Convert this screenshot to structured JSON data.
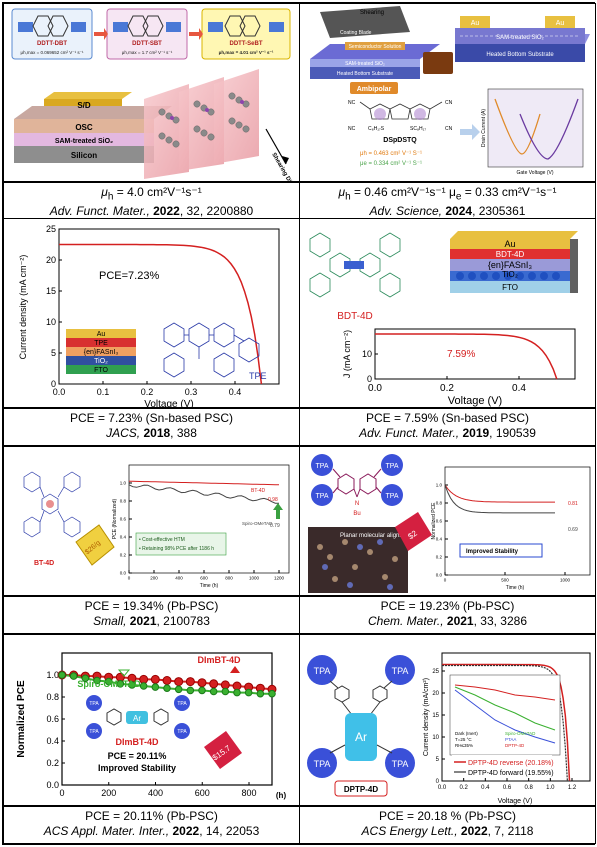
{
  "captions": [
    {
      "line1_pre": "μ",
      "line1_sub": "h",
      "line1_post": " = 4.0 cm²V⁻¹s⁻¹",
      "journal": "Adv. Funct. Mater.,",
      "year": "2022",
      "vol": ", 32, 2200880"
    },
    {
      "line1_pre": "μ",
      "line1_sub": "h",
      "line1_post": " = 0.46 cm²V⁻¹s⁻¹ μ",
      "line1_sub2": "e",
      "line1_post2": " = 0.33 cm²V⁻¹s⁻¹",
      "journal": "Adv. Science,",
      "year": "2024",
      "vol": ", 2305361"
    },
    {
      "line1": "PCE = 7.23% (Sn-based PSC)",
      "journal": "JACS,",
      "year": "2018",
      "vol": ", 388"
    },
    {
      "line1": "PCE = 7.59% (Sn-based PSC)",
      "journal": "Adv. Funct. Mater.,",
      "year": "2019",
      "vol": ", 190539"
    },
    {
      "line1": "PCE = 19.34% (Pb-PSC)",
      "journal": "Small,",
      "year": "2021",
      "vol": ", 2100783"
    },
    {
      "line1": "PCE = 19.23% (Pb-PSC)",
      "journal": "Chem. Mater.,",
      "year": "2021",
      "vol": ", 33, 3286"
    },
    {
      "line1": "PCE = 20.11% (Pb-PSC)",
      "journal": "ACS Appl. Mater. Inter.,",
      "year": "2022",
      "vol": ", 14, 22053"
    },
    {
      "line1": "PCE = 20.18 % (Pb-PSC)",
      "journal": "ACS Energy Lett.,",
      "year": "2022",
      "vol": ", 7, 2118"
    }
  ],
  "p1": {
    "mol1": "DDTT-DBT",
    "mol2": "DDTT-SBT",
    "mol3": "DDTT-SeBT",
    "mob1": "μh,max = 0.069652 cm² V⁻¹ s⁻¹",
    "mob2": "μh,max = 1.7 cm² V⁻¹ s⁻¹",
    "mob3": "μh,max = 4.01 cm² V⁻¹ s⁻¹",
    "layers": [
      "S/D",
      "OSC",
      "SAM-treated SiO₂",
      "Silicon"
    ],
    "shear": "Shearing Direction"
  },
  "p2": {
    "shearing": "Shearing",
    "blade": "Coating Blade",
    "solution": "Semiconductor Solution",
    "sam": "SAM-treated SiO₂",
    "heated": "Heated Bottom Substrate",
    "au1": "Au",
    "au2": "Au",
    "sam2": "SAM-treated SiO₂",
    "heated2": "Heated Bottom Substrate",
    "ambipolar": "Ambipolar",
    "mol": "DSpDSTQ",
    "c1": "C₈H₁₇S",
    "c2": "SC₈H₁₇",
    "muh": "μh = 0.463 cm² V⁻¹ S⁻¹",
    "mue": "μe = 0.334 cm² V⁻¹ S⁻¹",
    "ylabel": "Drain Current (A)",
    "xlabel": "Gate Voltage (V)"
  },
  "p3": {
    "ylabel": "Current density (mA cm⁻²)",
    "xlabel": "Voltage (V)",
    "pce": "PCE=7.23%",
    "xticks": [
      "0.0",
      "0.1",
      "0.2",
      "0.3",
      "0.4"
    ],
    "yticks": [
      "0",
      "5",
      "10",
      "15",
      "20",
      "25"
    ],
    "layers": [
      "Au",
      "TPE",
      "{en}FASnI₃",
      "TiO₂",
      "FTO"
    ],
    "tpe": "TPE"
  },
  "p4": {
    "layers": [
      "Au",
      "BDT-4D",
      "{en}FASnI₃",
      "TiO₂",
      "FTO"
    ],
    "mol": "BDT-4D",
    "ylabel": "J (mA cm⁻²)",
    "xlabel": "Voltage (V)",
    "pce": "7.59%",
    "xticks": [
      "0.0",
      "0.2",
      "0.4"
    ],
    "yticks": [
      "0",
      "10"
    ]
  },
  "p5": {
    "mol": "BT-4D",
    "price": "$26/g",
    "top": "BT-4D",
    "topval": "0.98",
    "bot": "Spiro-OMeTAD",
    "botval": "0.79",
    "b1": "• Cost-effective HTM",
    "b2": "• Retaining 98% PCE after 1186 h",
    "xlabel": "Time (h)",
    "ylabel": "PCE (Normalized)",
    "xticks": [
      "0",
      "200",
      "400",
      "600",
      "800",
      "1000",
      "1200"
    ],
    "yticks": [
      "0.0",
      "0.2",
      "0.4",
      "0.6",
      "0.8",
      "1.0"
    ]
  },
  "p6": {
    "tpa": "TPA",
    "n": "N",
    "bu": "Bu",
    "planar": "Planar molecular alignment",
    "price": "$2",
    "improved": "Improved Stability",
    "v1": "0.81",
    "v2": "0.69",
    "ylabel": "Normalized PCE",
    "xlabel": "Time (h)",
    "xticks": [
      "0",
      "500",
      "1000"
    ],
    "yticks": [
      "0.0",
      "0.2",
      "0.4",
      "0.6",
      "0.8",
      "1.0"
    ]
  },
  "p7": {
    "ylabel": "Normalized PCE",
    "xlabel": "(h)",
    "xticks": [
      "0",
      "200",
      "400",
      "600",
      "800"
    ],
    "yticks": [
      "0.0",
      "0.2",
      "0.4",
      "0.6",
      "0.8",
      "1.0"
    ],
    "dim": "DImBT-4D",
    "spiro": "Spiro-OMeTAD",
    "dim2": "DImBT-4D",
    "ar": "Ar",
    "tpa": "TPA",
    "pce": "PCE = 20.11%",
    "stab": "Improved Stability",
    "price": "$15.7",
    "series": [
      {
        "name": "DImBT-4D",
        "x": [
          0,
          50,
          100,
          150,
          200,
          250,
          300,
          350,
          400,
          450,
          500,
          550,
          600,
          650,
          700,
          750,
          800,
          850,
          900
        ],
        "y": [
          1.0,
          1.0,
          0.99,
          0.99,
          0.98,
          0.98,
          0.97,
          0.96,
          0.96,
          0.95,
          0.94,
          0.94,
          0.93,
          0.92,
          0.91,
          0.9,
          0.89,
          0.88,
          0.87
        ]
      },
      {
        "name": "Spiro-OMeTAD",
        "x": [
          0,
          50,
          100,
          150,
          200,
          250,
          300,
          350,
          400,
          450,
          500,
          550,
          600,
          650,
          700,
          750,
          800,
          850,
          900
        ],
        "y": [
          1.0,
          0.99,
          0.97,
          0.95,
          0.94,
          0.92,
          0.91,
          0.9,
          0.89,
          0.88,
          0.87,
          0.86,
          0.86,
          0.85,
          0.85,
          0.84,
          0.84,
          0.83,
          0.83
        ]
      }
    ]
  },
  "p8": {
    "tpa": "TPA",
    "ar": "Ar",
    "mol": "DPTP-4D",
    "ylabel": "Current density (mA/cm²)",
    "xlabel": "Voltage (V)",
    "xticks": [
      "0.0",
      "0.2",
      "0.4",
      "0.6",
      "0.8",
      "1.0",
      "1.2"
    ],
    "yticks": [
      "0",
      "5",
      "10",
      "15",
      "20",
      "25"
    ],
    "rev": "DPTP-4D reverse (20.18%)",
    "fwd": "DPTP-4D forward (19.55%)",
    "inset": [
      "Dark (Inert)",
      "T=25 °C",
      "RH≤35%",
      "Spiro-OMeTAD",
      "PTAA",
      "DPTP-4D"
    ]
  }
}
